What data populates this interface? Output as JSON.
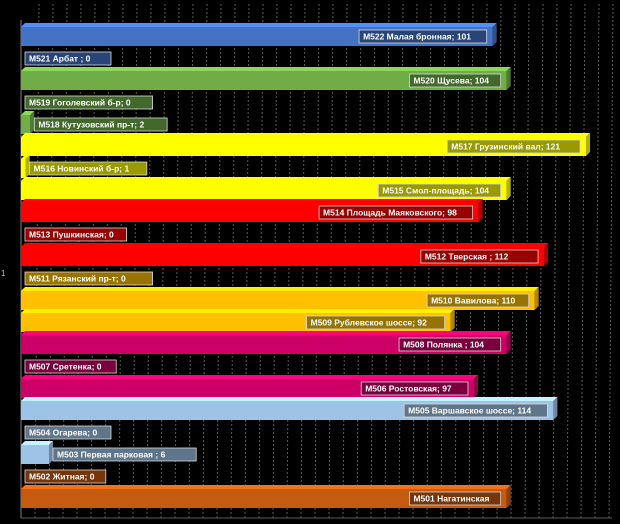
{
  "chart_data": {
    "type": "bar",
    "orientation": "horizontal",
    "three_d": true,
    "grid": true,
    "y_tick_labels": [
      "1"
    ],
    "xlim": [
      0,
      130
    ],
    "categories": [
      "M522 Малая бронная",
      "M521 Арбат ",
      "M520 Щусева",
      "M519 Гоголевский б-р",
      "M518 Кутузовский пр-т",
      "M517 Грузинский вал",
      "M516 Новинский б-р",
      "M515 Смол-площадь",
      "M514 Площадь Маяковского",
      "M513 Пушкинская",
      "M512 Тверская  ",
      "M511  Рязанский пр-т",
      "M510 Вавилова",
      "M509 Рублевское шоссе",
      "M508 Полянка ",
      "M507 Сретенка",
      "M506 Ростовская",
      "M505 Варшавское шоссе",
      "M504 Огарева",
      "M503 Первая парковая  ",
      "M502 Житная",
      "M501 Нагатинская"
    ],
    "values": [
      101,
      0,
      104,
      0,
      2,
      121,
      1,
      104,
      98,
      0,
      112,
      0,
      110,
      92,
      104,
      0,
      97,
      114,
      0,
      6,
      0,
      104
    ],
    "data_labels": [
      "M522 Малая бронная; 101",
      "M521 Арбат  ; 0",
      "M520 Щусева; 104",
      "M519 Гоголевский б-р; 0",
      "M518 Кутузовский пр-т; 2",
      "M517 Грузинский вал; 121",
      "M516 Новинский б-р; 1",
      "M515 Смол-площадь; 104",
      "M514 Площадь Маяковского; 98",
      "M513 Пушкинская; 0",
      "M512 Тверская   ; 112",
      "M511  Рязанский пр-т; 0",
      "M510 Вавилова; 110",
      "M509 Рублевское шоссе; 92",
      "M508 Полянка ; 104",
      "M507 Сретенка; 0",
      "M506 Ростовская; 97",
      "M505 Варшавское шоссе; 114",
      "M504 Огарева; 0",
      "M503 Первая парковая   ; 6",
      "M502 Житная; 0",
      "M501 Нагатинская"
    ],
    "colors": [
      "#4472C4",
      "#4472C4",
      "#70AD47",
      "#70AD47",
      "#70AD47",
      "#FFFF00",
      "#FFFF00",
      "#FFFF00",
      "#FF0000",
      "#FF0000",
      "#FF0000",
      "#FFC000",
      "#FFC000",
      "#FFC000",
      "#CC0066",
      "#CC0066",
      "#CC0066",
      "#9DC3E6",
      "#9DC3E6",
      "#9DC3E6",
      "#C55A11",
      "#C55A11"
    ],
    "title": "",
    "xlabel": "",
    "ylabel": ""
  }
}
